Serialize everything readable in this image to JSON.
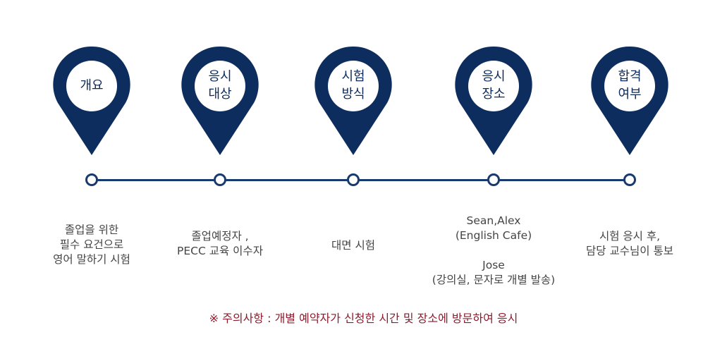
{
  "colors": {
    "pin": "#0d2d5e",
    "line": "#183a6d",
    "notice": "#8b1c2d"
  },
  "steps": [
    {
      "label": "개요",
      "desc": "졸업을 위한\n필수 요건으로\n영어 말하기 시험"
    },
    {
      "label": "응시\n대상",
      "desc": "졸업예정자 ,\nPECC 교육 이수자"
    },
    {
      "label": "시험\n방식",
      "desc": "대면 시험"
    },
    {
      "label": "응시\n장소",
      "desc": "Sean,Alex\n(English Cafe)\n\nJose\n(강의실, 문자로 개별 발송)"
    },
    {
      "label": "합격\n여부",
      "desc": "시험 응시 후,\n담당 교수님이 통보"
    }
  ],
  "notice": "※ 주의사항 :  개별 예약자가 신청한 시간 및 장소에 방문하여 응시"
}
